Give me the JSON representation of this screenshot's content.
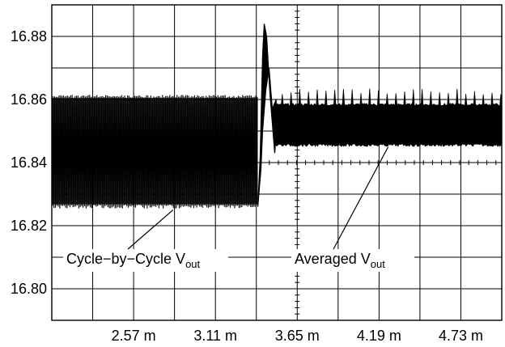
{
  "chart_data": {
    "type": "line",
    "title": "",
    "xlabel": "",
    "ylabel": "",
    "x_ticks": [
      "2.57 m",
      "3.11 m",
      "3.65 m",
      "4.19 m",
      "4.73 m"
    ],
    "x_tick_values": [
      2.57,
      3.11,
      3.65,
      4.19,
      4.73
    ],
    "xlim": [
      2.03,
      5.0
    ],
    "y_ticks": [
      "16.88",
      "16.86",
      "16.84",
      "16.82",
      "16.80"
    ],
    "y_tick_values": [
      16.88,
      16.86,
      16.84,
      16.82,
      16.8
    ],
    "ylim": [
      16.79,
      16.89
    ],
    "grid": true,
    "series": [
      {
        "segment": "before transient",
        "x_range": [
          2.03,
          3.39
        ],
        "y_min": 16.826,
        "y_max": 16.861
      },
      {
        "segment": "transient spike",
        "x_range": [
          3.4,
          3.5
        ],
        "peak": 16.884,
        "trough": 16.843
      },
      {
        "segment": "after transient",
        "x_range": [
          3.5,
          5.0
        ],
        "y_min": 16.846,
        "y_max": 16.865,
        "ripple_peak": 16.8635
      }
    ],
    "annotations": [
      {
        "text": "Cycle−by−Cycle V",
        "subscript": "out",
        "target_x": 2.83,
        "target_y": 16.826
      },
      {
        "text": "Averaged V",
        "subscript": "out",
        "target_x": 4.25,
        "target_y": 16.846
      }
    ],
    "colors": {
      "waveform": "#000000",
      "grid": "#000000",
      "background": "#ffffff"
    }
  }
}
